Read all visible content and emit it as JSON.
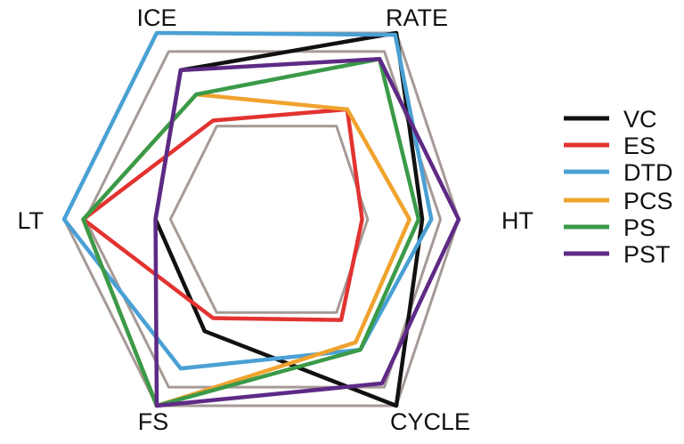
{
  "chart_data": {
    "type": "radar",
    "axes": [
      "ICE",
      "RATE",
      "HT",
      "CYCLE",
      "FS",
      "LT"
    ],
    "range": [
      0,
      1
    ],
    "grid_levels": [
      0.5,
      0.9,
      1.0
    ],
    "grid_color": "#a69a96",
    "legend_position": "right",
    "series": [
      {
        "name": "VC",
        "color": "#111111",
        "values": [
          0.8,
          1.0,
          0.8,
          1.0,
          0.6,
          0.57
        ]
      },
      {
        "name": "ES",
        "color": "#e23331",
        "values": [
          0.53,
          0.59,
          0.47,
          0.54,
          0.53,
          0.91
        ]
      },
      {
        "name": "DTD",
        "color": "#4aa0d4",
        "values": [
          1.0,
          0.99,
          0.85,
          0.7,
          0.8,
          1.0
        ]
      },
      {
        "name": "PCS",
        "color": "#f0a32e",
        "values": [
          0.67,
          0.59,
          0.73,
          0.66,
          1.0,
          0.91
        ]
      },
      {
        "name": "PS",
        "color": "#3a9a48",
        "values": [
          0.67,
          0.86,
          0.78,
          0.7,
          1.0,
          0.91
        ]
      },
      {
        "name": "PST",
        "color": "#5e2a86",
        "values": [
          0.8,
          0.86,
          1.0,
          0.88,
          1.0,
          0.57
        ]
      }
    ]
  }
}
